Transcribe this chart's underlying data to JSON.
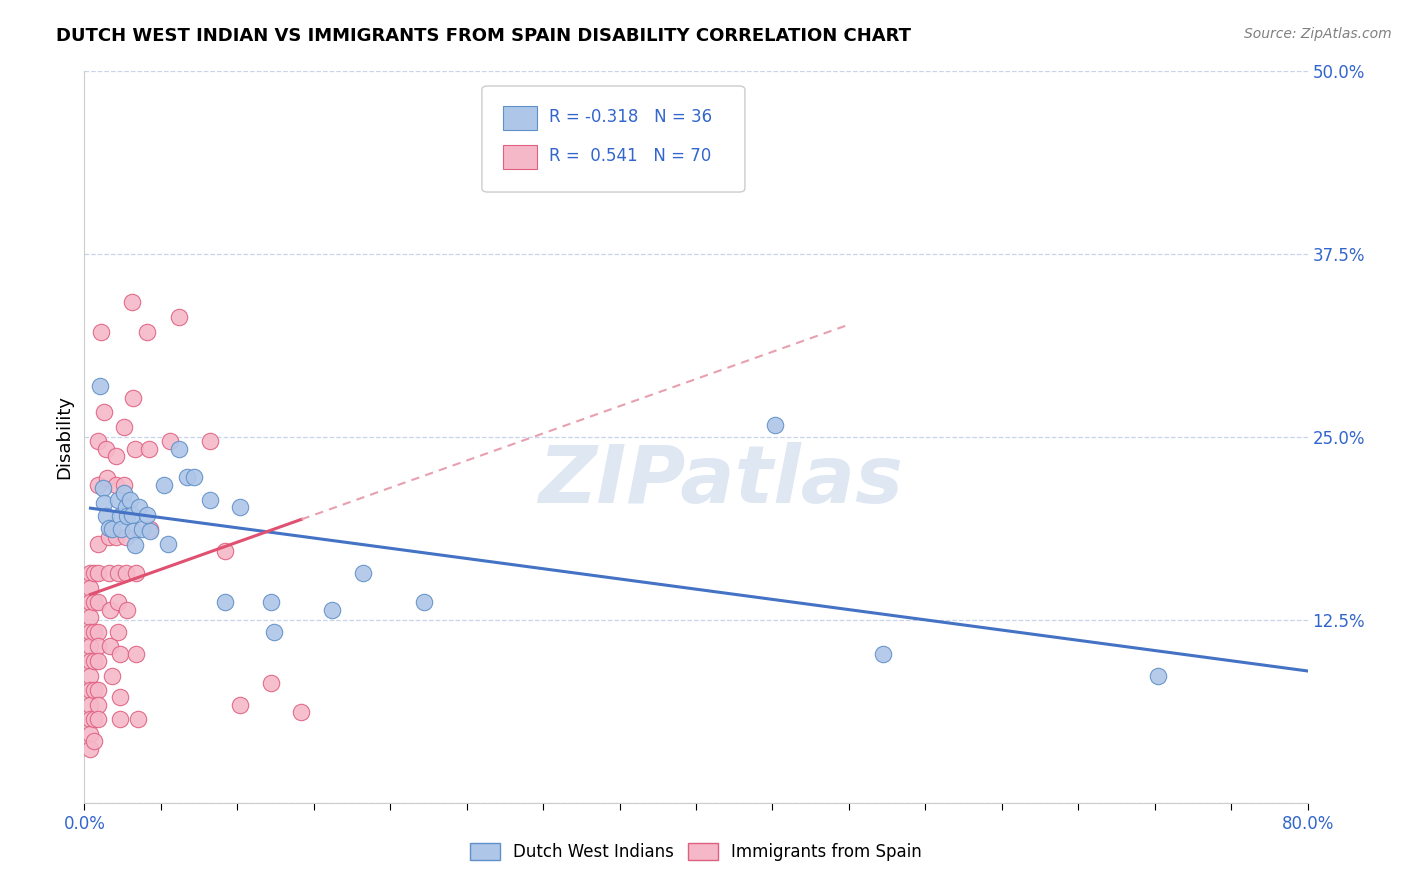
{
  "title": "DUTCH WEST INDIAN VS IMMIGRANTS FROM SPAIN DISABILITY CORRELATION CHART",
  "source": "Source: ZipAtlas.com",
  "ylabel": "Disability",
  "xlim": [
    0.0,
    0.8
  ],
  "ylim": [
    0.0,
    0.5
  ],
  "blue_R": -0.318,
  "blue_N": 36,
  "pink_R": 0.541,
  "pink_N": 70,
  "blue_label": "Dutch West Indians",
  "pink_label": "Immigrants from Spain",
  "blue_scatter_color": "#aec6e8",
  "blue_edge_color": "#6090c8",
  "pink_scatter_color": "#f5b8c8",
  "pink_edge_color": "#e06080",
  "blue_line_color": "#4472c4",
  "pink_line_color": "#e05070",
  "pink_dash_color": "#e8a0b0",
  "legend_text_color": "#3366cc",
  "tick_label_color": "#3366cc",
  "background_color": "#ffffff",
  "grid_color": "#c8d4e8",
  "watermark": "ZIPatlas",
  "blue_points": [
    [
      0.01,
      0.285
    ],
    [
      0.012,
      0.215
    ],
    [
      0.013,
      0.205
    ],
    [
      0.014,
      0.196
    ],
    [
      0.016,
      0.188
    ],
    [
      0.018,
      0.187
    ],
    [
      0.022,
      0.207
    ],
    [
      0.023,
      0.196
    ],
    [
      0.024,
      0.187
    ],
    [
      0.026,
      0.212
    ],
    [
      0.027,
      0.202
    ],
    [
      0.028,
      0.196
    ],
    [
      0.03,
      0.207
    ],
    [
      0.031,
      0.197
    ],
    [
      0.032,
      0.186
    ],
    [
      0.033,
      0.176
    ],
    [
      0.036,
      0.202
    ],
    [
      0.038,
      0.187
    ],
    [
      0.041,
      0.197
    ],
    [
      0.043,
      0.186
    ],
    [
      0.052,
      0.217
    ],
    [
      0.055,
      0.177
    ],
    [
      0.062,
      0.242
    ],
    [
      0.067,
      0.223
    ],
    [
      0.072,
      0.223
    ],
    [
      0.082,
      0.207
    ],
    [
      0.092,
      0.137
    ],
    [
      0.102,
      0.202
    ],
    [
      0.122,
      0.137
    ],
    [
      0.124,
      0.117
    ],
    [
      0.162,
      0.132
    ],
    [
      0.182,
      0.157
    ],
    [
      0.222,
      0.137
    ],
    [
      0.452,
      0.258
    ],
    [
      0.522,
      0.102
    ],
    [
      0.702,
      0.087
    ]
  ],
  "pink_points": [
    [
      0.004,
      0.157
    ],
    [
      0.004,
      0.147
    ],
    [
      0.004,
      0.137
    ],
    [
      0.004,
      0.127
    ],
    [
      0.004,
      0.117
    ],
    [
      0.004,
      0.107
    ],
    [
      0.004,
      0.097
    ],
    [
      0.004,
      0.087
    ],
    [
      0.004,
      0.077
    ],
    [
      0.004,
      0.067
    ],
    [
      0.004,
      0.057
    ],
    [
      0.004,
      0.047
    ],
    [
      0.004,
      0.037
    ],
    [
      0.006,
      0.157
    ],
    [
      0.006,
      0.137
    ],
    [
      0.006,
      0.117
    ],
    [
      0.006,
      0.097
    ],
    [
      0.006,
      0.077
    ],
    [
      0.006,
      0.057
    ],
    [
      0.006,
      0.042
    ],
    [
      0.009,
      0.247
    ],
    [
      0.009,
      0.217
    ],
    [
      0.009,
      0.177
    ],
    [
      0.009,
      0.157
    ],
    [
      0.009,
      0.137
    ],
    [
      0.009,
      0.117
    ],
    [
      0.009,
      0.107
    ],
    [
      0.009,
      0.097
    ],
    [
      0.009,
      0.077
    ],
    [
      0.009,
      0.067
    ],
    [
      0.009,
      0.057
    ],
    [
      0.011,
      0.322
    ],
    [
      0.013,
      0.267
    ],
    [
      0.014,
      0.242
    ],
    [
      0.015,
      0.222
    ],
    [
      0.016,
      0.182
    ],
    [
      0.016,
      0.157
    ],
    [
      0.017,
      0.132
    ],
    [
      0.017,
      0.107
    ],
    [
      0.018,
      0.087
    ],
    [
      0.021,
      0.237
    ],
    [
      0.021,
      0.217
    ],
    [
      0.021,
      0.182
    ],
    [
      0.022,
      0.157
    ],
    [
      0.022,
      0.137
    ],
    [
      0.022,
      0.117
    ],
    [
      0.023,
      0.102
    ],
    [
      0.023,
      0.072
    ],
    [
      0.023,
      0.057
    ],
    [
      0.026,
      0.257
    ],
    [
      0.026,
      0.217
    ],
    [
      0.027,
      0.182
    ],
    [
      0.027,
      0.157
    ],
    [
      0.028,
      0.132
    ],
    [
      0.031,
      0.342
    ],
    [
      0.032,
      0.277
    ],
    [
      0.033,
      0.242
    ],
    [
      0.034,
      0.157
    ],
    [
      0.034,
      0.102
    ],
    [
      0.035,
      0.057
    ],
    [
      0.041,
      0.322
    ],
    [
      0.042,
      0.242
    ],
    [
      0.043,
      0.187
    ],
    [
      0.056,
      0.247
    ],
    [
      0.062,
      0.332
    ],
    [
      0.082,
      0.247
    ],
    [
      0.092,
      0.172
    ],
    [
      0.102,
      0.067
    ],
    [
      0.122,
      0.082
    ],
    [
      0.142,
      0.062
    ]
  ],
  "pink_line_x_start": 0.004,
  "pink_line_x_solid_end": 0.142,
  "pink_line_x_dash_end": 0.5,
  "blue_line_x_start": 0.004,
  "blue_line_x_end": 0.8
}
